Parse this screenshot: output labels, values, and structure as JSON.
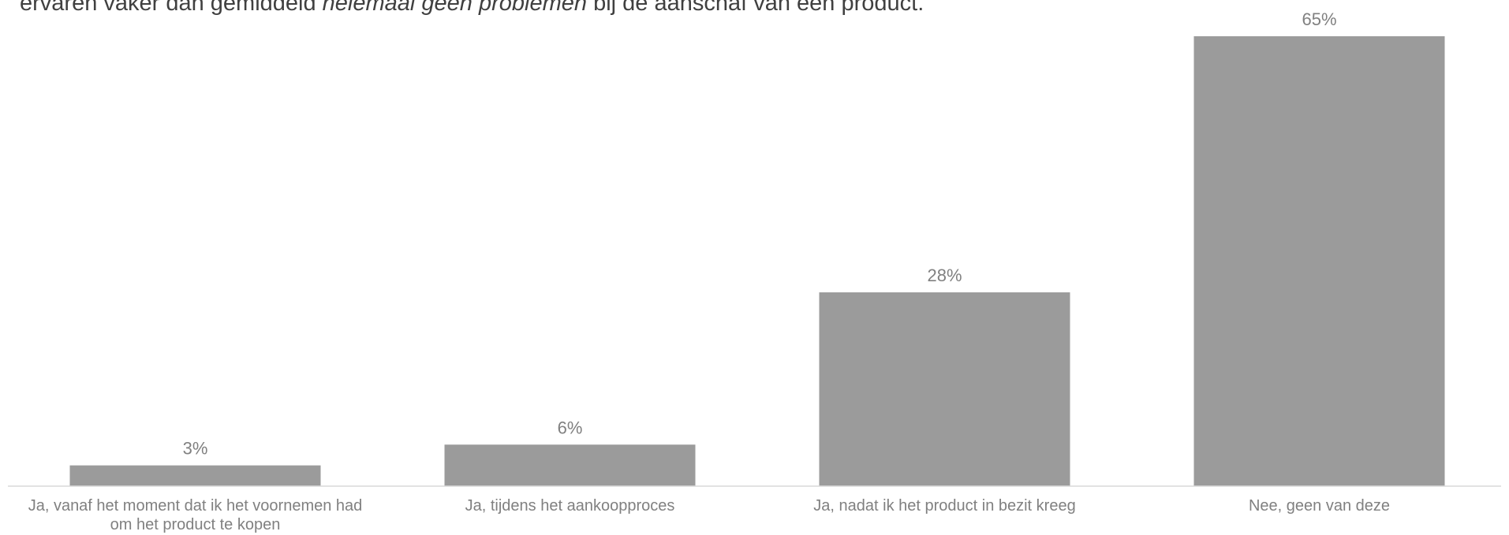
{
  "title": {
    "prefix": "ervaren vaker dan gemiddeld ",
    "emphasis": "helemaal geen problemen",
    "suffix": " bij de aanschaf van een product."
  },
  "colors": {
    "bar": "#9b9b9b",
    "axis": "#d9d9d9",
    "label": "#808080",
    "title": "#404040"
  },
  "chart_data": {
    "type": "bar",
    "title": "ervaren vaker dan gemiddeld helemaal geen problemen bij de aanschaf van een product.",
    "categories": [
      [
        "Ja, vanaf het moment dat ik het voornemen had",
        "om het product te kopen"
      ],
      [
        "Ja, tijdens het aankoopproces"
      ],
      [
        "Ja, nadat ik het product in bezit kreeg"
      ],
      [
        "Nee, geen van deze"
      ]
    ],
    "values": [
      3,
      6,
      28,
      65
    ],
    "value_labels": [
      "3%",
      "6%",
      "28%",
      "65%"
    ],
    "unit": "%",
    "ylim": [
      0,
      65
    ],
    "grid": false,
    "legend": "none"
  }
}
